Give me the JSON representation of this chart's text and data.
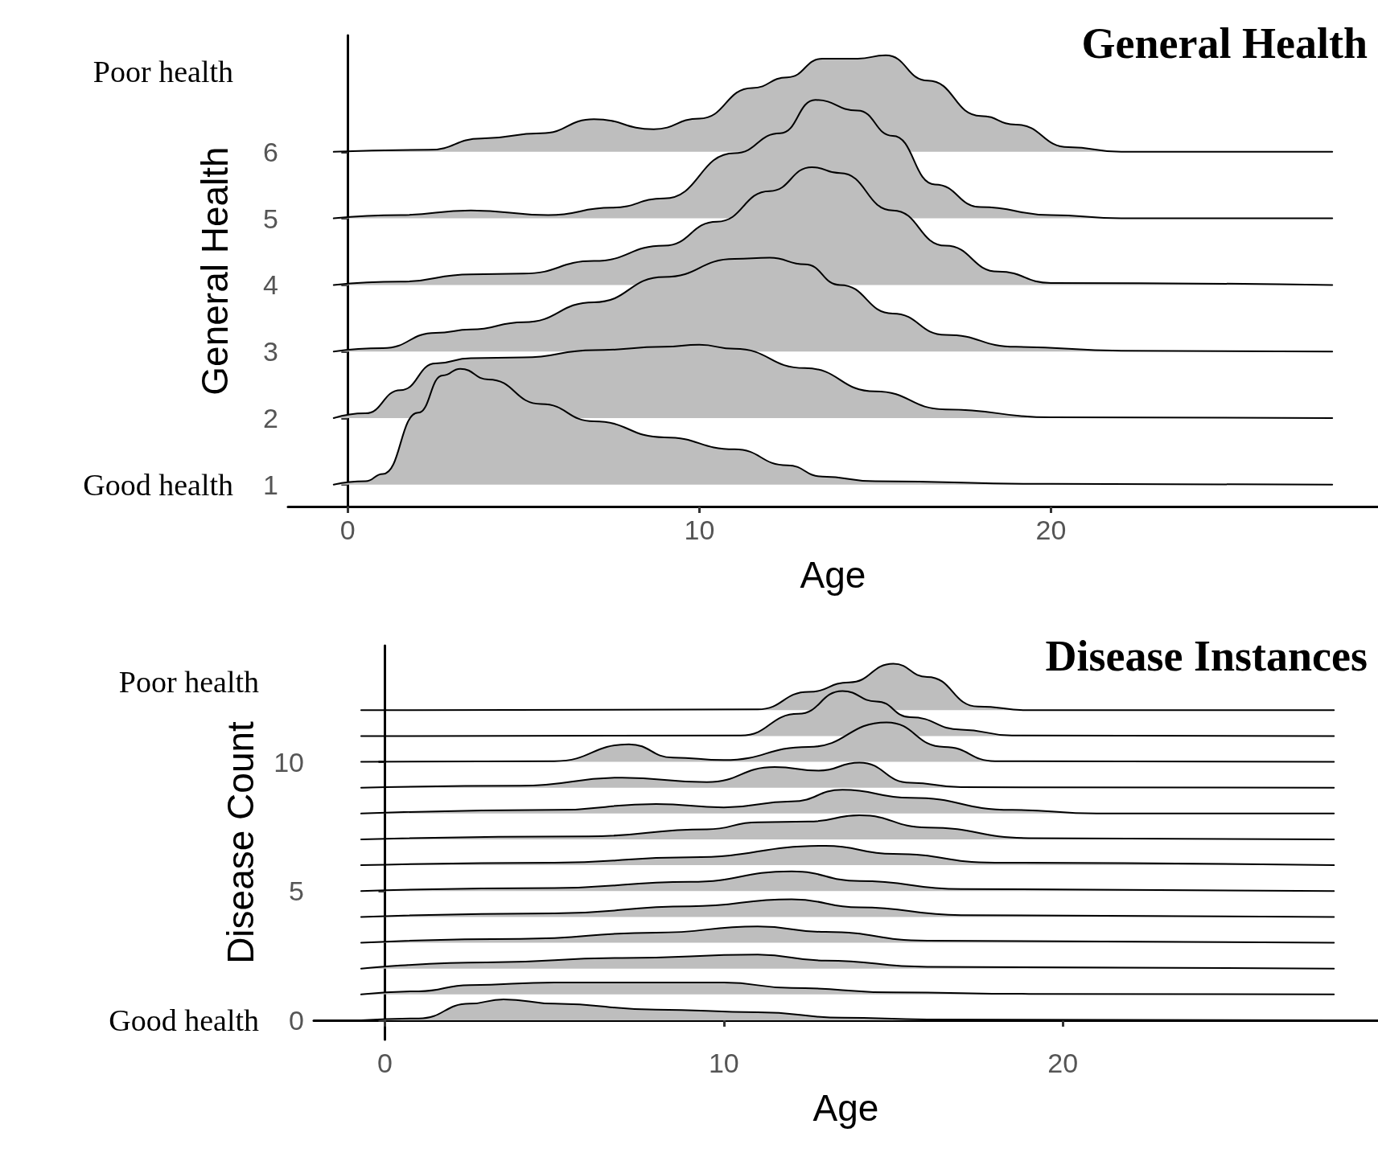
{
  "chart_data": [
    {
      "type": "area",
      "title": "General Health",
      "xlabel": "Age",
      "ylabel": "General Health",
      "annotations": [
        "Poor health",
        "Good health"
      ],
      "xlim": [
        -1.7,
        29.3
      ],
      "xticks": [
        0,
        10,
        20
      ],
      "ylim": [
        0.67,
        7.75
      ],
      "yticks": [
        1,
        2,
        3,
        4,
        5,
        6
      ],
      "series": [
        {
          "color": "#bebebe",
          "x": [
            -0.4,
            0.5,
            1,
            2,
            2.7,
            3.2,
            4,
            5.5,
            7,
            9,
            11,
            12.5,
            13.5,
            15,
            20,
            28
          ],
          "values": [
            1,
            1.05,
            1.16,
            2.08,
            2.64,
            2.74,
            2.58,
            2.21,
            1.95,
            1.71,
            1.53,
            1.29,
            1.12,
            1.05,
            1.01,
            1
          ]
        },
        {
          "color": "#bebebe",
          "x": [
            -0.4,
            0.5,
            1.5,
            2.5,
            3.5,
            5,
            7,
            9,
            10,
            11,
            13,
            15,
            17,
            20,
            28
          ],
          "values": [
            2,
            2.07,
            2.42,
            2.82,
            2.9,
            2.91,
            3.02,
            3.07,
            3.1,
            3.04,
            2.75,
            2.4,
            2.13,
            2.01,
            2
          ]
        },
        {
          "color": "#bebebe",
          "x": [
            -0.4,
            1,
            2.5,
            3.5,
            5,
            7,
            9,
            11,
            12,
            13,
            14,
            15.5,
            17,
            19,
            22,
            28
          ],
          "values": [
            3,
            3.05,
            3.28,
            3.33,
            3.44,
            3.74,
            4.12,
            4.39,
            4.41,
            4.31,
            4,
            3.57,
            3.25,
            3.07,
            3.01,
            3
          ]
        },
        {
          "color": "#bebebe",
          "x": [
            -0.4,
            1.5,
            3.5,
            5,
            7,
            9,
            10.5,
            12,
            13.2,
            14,
            15.5,
            17,
            18.5,
            20,
            28
          ],
          "values": [
            4,
            4.05,
            4.16,
            4.17,
            4.36,
            4.59,
            4.95,
            5.41,
            5.77,
            5.68,
            5.12,
            4.59,
            4.2,
            4.03,
            4
          ]
        },
        {
          "color": "#bebebe",
          "x": [
            -0.4,
            1.5,
            3.5,
            5.7,
            7.5,
            9,
            11,
            12.3,
            13.3,
            14.5,
            15.5,
            16.7,
            18,
            20,
            22,
            28
          ],
          "values": [
            5,
            5.05,
            5.12,
            5.05,
            5.16,
            5.3,
            5.98,
            6.28,
            6.78,
            6.62,
            6.24,
            5.51,
            5.17,
            5.05,
            5,
            5
          ]
        },
        {
          "color": "#bebebe",
          "x": [
            -0.4,
            2.3,
            3.8,
            5.5,
            7,
            8.7,
            10,
            11.5,
            12.5,
            13.5,
            14.5,
            15.3,
            16.5,
            18,
            19,
            20.5,
            22,
            28
          ],
          "values": [
            6,
            6.03,
            6.2,
            6.28,
            6.49,
            6.34,
            6.5,
            6.96,
            7.12,
            7.4,
            7.4,
            7.45,
            7.07,
            6.54,
            6.41,
            6.07,
            6,
            6
          ]
        }
      ]
    },
    {
      "type": "area",
      "title": "Disease Instances",
      "xlabel": "Age",
      "ylabel": "Disease Count",
      "annotations": [
        "Poor health",
        "Good health"
      ],
      "xlim": [
        -2.1,
        29.3
      ],
      "xticks": [
        0,
        10,
        20
      ],
      "ylim": [
        -0.75,
        14.5
      ],
      "yticks": [
        0,
        5,
        10
      ],
      "series": [
        {
          "color": "#bebebe",
          "x": [
            -0.7,
            1,
            2.5,
            3.5,
            5,
            8,
            11,
            13.5,
            16,
            28
          ],
          "values": [
            0,
            0.07,
            0.64,
            0.81,
            0.64,
            0.41,
            0.31,
            0.1,
            0.03,
            0
          ]
        },
        {
          "color": "#bebebe",
          "x": [
            -0.7,
            1,
            2.5,
            5,
            10,
            12,
            15,
            19,
            28
          ],
          "values": [
            1,
            1.12,
            1.36,
            1.46,
            1.46,
            1.25,
            1.08,
            1.02,
            1
          ]
        },
        {
          "color": "#bebebe",
          "x": [
            -0.7,
            3,
            7,
            11,
            13,
            16,
            28
          ],
          "values": [
            2,
            2.24,
            2.41,
            2.54,
            2.31,
            2.07,
            2
          ]
        },
        {
          "color": "#bebebe",
          "x": [
            -0.7,
            4,
            8,
            11,
            13,
            16,
            28
          ],
          "values": [
            3,
            3.15,
            3.39,
            3.63,
            3.42,
            3.08,
            3
          ]
        },
        {
          "color": "#bebebe",
          "x": [
            -0.7,
            5,
            9,
            12,
            14,
            17,
            28
          ],
          "values": [
            4,
            4.14,
            4.41,
            4.68,
            4.37,
            4.07,
            4
          ]
        },
        {
          "color": "#bebebe",
          "x": [
            -0.7,
            5,
            9,
            12,
            14,
            17,
            28
          ],
          "values": [
            5,
            5.12,
            5.36,
            5.76,
            5.39,
            5.08,
            5
          ]
        },
        {
          "color": "#bebebe",
          "x": [
            -0.7,
            5,
            9,
            13,
            15,
            18,
            28
          ],
          "values": [
            6,
            6.1,
            6.31,
            6.75,
            6.44,
            6.1,
            6
          ]
        },
        {
          "color": "#bebebe",
          "x": [
            -0.7,
            6,
            9.5,
            11,
            12.5,
            14,
            16,
            19,
            28
          ],
          "values": [
            7,
            7.12,
            7.39,
            7.66,
            7.69,
            7.93,
            7.46,
            7.05,
            7
          ]
        },
        {
          "color": "#bebebe",
          "x": [
            -0.7,
            5,
            8,
            10,
            12,
            13.5,
            15.5,
            18.5,
            21,
            28
          ],
          "values": [
            8,
            8.14,
            8.37,
            8.24,
            8.47,
            8.92,
            8.61,
            8.14,
            8,
            8
          ]
        },
        {
          "color": "#bebebe",
          "x": [
            -0.7,
            4,
            7,
            9.5,
            11.5,
            12.8,
            14,
            15.5,
            17,
            28
          ],
          "values": [
            9,
            9.08,
            9.39,
            9.22,
            9.8,
            9.66,
            9.97,
            9.19,
            9.02,
            9
          ]
        },
        {
          "color": "#bebebe",
          "x": [
            -0.7,
            5,
            7.2,
            8.5,
            10,
            12.5,
            14.8,
            16.5,
            18,
            28
          ],
          "values": [
            10,
            10.03,
            10.68,
            10.17,
            10.07,
            10.58,
            11.53,
            10.58,
            10.03,
            10
          ]
        },
        {
          "color": "#bebebe",
          "x": [
            -0.7,
            10.5,
            12.2,
            13.5,
            14.5,
            15.5,
            17,
            18.5,
            28
          ],
          "values": [
            11,
            11.02,
            11.86,
            12.74,
            12.34,
            11.73,
            11.25,
            11.02,
            11
          ]
        },
        {
          "color": "#bebebe",
          "x": [
            -0.7,
            11,
            12.5,
            13.7,
            15,
            16,
            17.5,
            19,
            28
          ],
          "values": [
            12,
            12.03,
            12.71,
            13.08,
            13.8,
            13.29,
            12.14,
            12,
            12
          ]
        }
      ]
    }
  ]
}
